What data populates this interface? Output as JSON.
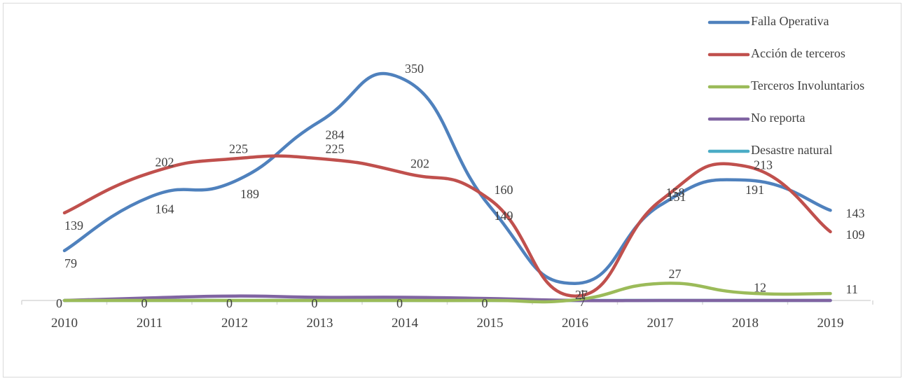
{
  "chart_data": {
    "type": "line",
    "smooth": true,
    "categories": [
      "2010",
      "2011",
      "2012",
      "2013",
      "2014",
      "2015",
      "2016",
      "2017",
      "2018",
      "2019"
    ],
    "series": [
      {
        "name": "Falla Operativa",
        "color": "#4f81bd",
        "values": [
          79,
          164,
          189,
          284,
          350,
          149,
          27,
          151,
          191,
          143
        ]
      },
      {
        "name": "Acción de terceros",
        "color": "#c0504d",
        "values": [
          139,
          202,
          225,
          225,
          202,
          160,
          7,
          158,
          213,
          109
        ]
      },
      {
        "name": "Terceros Involuntarios",
        "color": "#9bbb59",
        "values": [
          0,
          0,
          0,
          0,
          0,
          0,
          1,
          27,
          12,
          11
        ]
      },
      {
        "name": "No reporta",
        "color": "#8064a2",
        "values": [
          0,
          4,
          7,
          5,
          5,
          3,
          0,
          0,
          0,
          0
        ]
      },
      {
        "name": "Desastre natural",
        "color": "#4bacc6",
        "values": [
          0,
          0,
          0,
          0,
          0,
          0,
          0,
          0,
          0,
          0
        ]
      }
    ],
    "data_labels": [
      {
        "series": 0,
        "labels": [
          "79",
          "164",
          "189",
          "284",
          "350",
          "149",
          "27",
          "151",
          "191",
          "143"
        ]
      },
      {
        "series": 1,
        "labels": [
          "139",
          "202",
          "225",
          "225",
          "202",
          "160",
          "7",
          "158",
          "213",
          "109"
        ]
      },
      {
        "series": 2,
        "labels": [
          "0",
          "0",
          "0",
          "0",
          "0",
          "0",
          "1",
          "27",
          "12",
          "11"
        ]
      }
    ],
    "ylim": [
      0,
      350
    ],
    "grid": false,
    "legend_position": "right",
    "title": "",
    "xlabel": "",
    "ylabel": ""
  }
}
